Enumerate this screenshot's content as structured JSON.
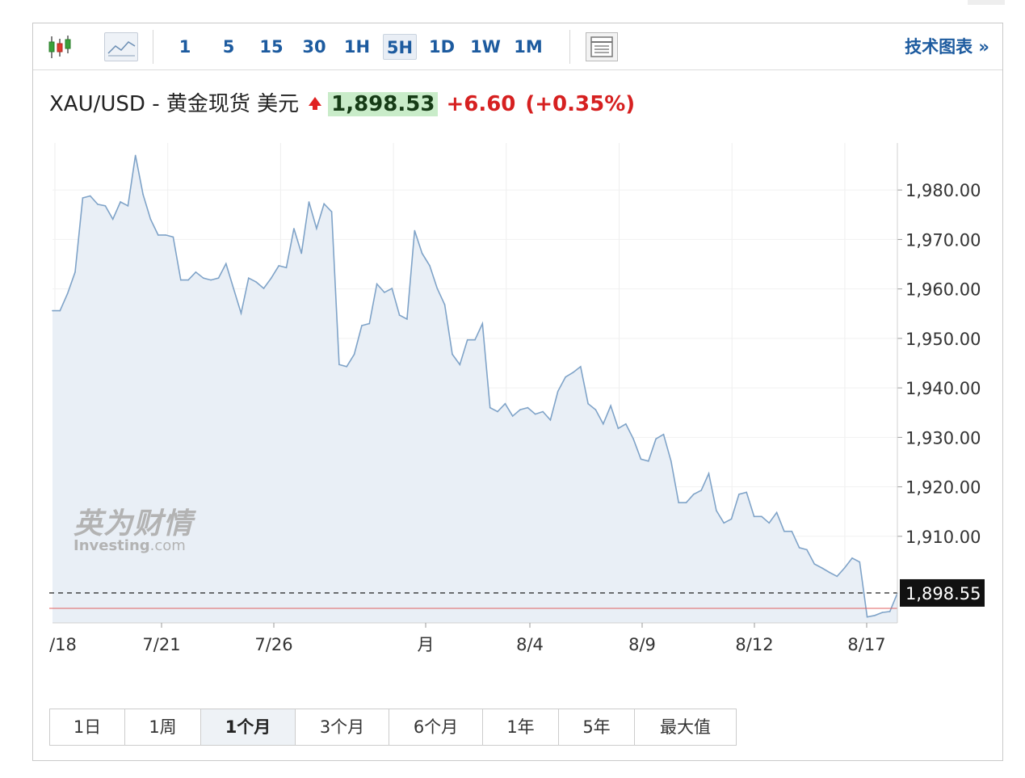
{
  "toolbar": {
    "intervals": [
      "1",
      "5",
      "15",
      "30",
      "1H",
      "5H",
      "1D",
      "1W",
      "1M"
    ],
    "active_interval": "5H",
    "tech_chart_link": "技术图表 »"
  },
  "quote": {
    "title": "XAU/USD - 黄金现货 美元",
    "price": "1,898.53",
    "change": "+6.60",
    "change_pct": "(+0.35%)",
    "direction": "up"
  },
  "watermark": {
    "cn": "英为财情",
    "en_main": "Investing",
    "en_suffix": ".com"
  },
  "ranges": [
    "1日",
    "1周",
    "1个月",
    "3个月",
    "6个月",
    "1年",
    "5年",
    "最大值"
  ],
  "active_range": "1个月",
  "colors": {
    "line": "#7fa3c8",
    "area": "#e9eff6",
    "up_red": "#e02020",
    "price_bg": "#c9ecc9",
    "link_blue": "#1d5b9f",
    "baseline": "#e06060"
  },
  "chart_data": {
    "type": "area",
    "x_ticks": [
      "/18",
      "7/21",
      "7/26",
      "月",
      "8/4",
      "8/9",
      "8/12",
      "8/17"
    ],
    "y_ticks": [
      "1,980.00",
      "1,970.00",
      "1,960.00",
      "1,950.00",
      "1,940.00",
      "1,930.00",
      "1,920.00",
      "1,910.00"
    ],
    "ylim": [
      1892.5,
      1989.5
    ],
    "last_label": "1,898.55",
    "last_value": 1898.55,
    "grid": true,
    "series": [
      {
        "values": [
          1955.6,
          1955.6,
          1959.1,
          1963.4,
          1978.4,
          1978.8,
          1977.1,
          1976.8,
          1974.1,
          1977.6,
          1976.8,
          1987.0,
          1979.1,
          1974.1,
          1970.9,
          1970.9,
          1970.5,
          1961.8,
          1961.8,
          1963.4,
          1962.2,
          1961.8,
          1962.2,
          1965.1,
          1960.1,
          1955.1,
          1962.2,
          1961.4,
          1960.1,
          1962.2,
          1964.7,
          1964.3,
          1972.2,
          1967.2,
          1977.6,
          1972.2,
          1977.2,
          1975.6,
          1944.7,
          1944.3,
          1946.8,
          1952.6,
          1953.0,
          1961.0,
          1959.3,
          1960.1,
          1954.7,
          1953.9,
          1971.8,
          1967.2,
          1964.7,
          1960.1,
          1956.8,
          1946.8,
          1944.7,
          1949.7,
          1949.7,
          1953.0,
          1936.0,
          1935.2,
          1936.8,
          1934.3,
          1935.6,
          1936.0,
          1934.7,
          1935.2,
          1933.5,
          1939.3,
          1942.2,
          1943.1,
          1944.3,
          1936.8,
          1935.6,
          1932.7,
          1936.4,
          1931.8,
          1932.7,
          1929.7,
          1925.6,
          1925.2,
          1929.7,
          1930.6,
          1925.2,
          1916.8,
          1916.8,
          1918.5,
          1919.3,
          1922.7,
          1915.2,
          1912.7,
          1913.5,
          1918.5,
          1918.9,
          1914.0,
          1914.0,
          1912.7,
          1914.8,
          1911.0,
          1911.0,
          1907.7,
          1907.3,
          1904.4,
          1903.6,
          1902.7,
          1901.9,
          1903.6,
          1905.6,
          1904.8,
          1893.7,
          1894.0,
          1894.6,
          1894.8,
          1898.5
        ]
      }
    ]
  }
}
